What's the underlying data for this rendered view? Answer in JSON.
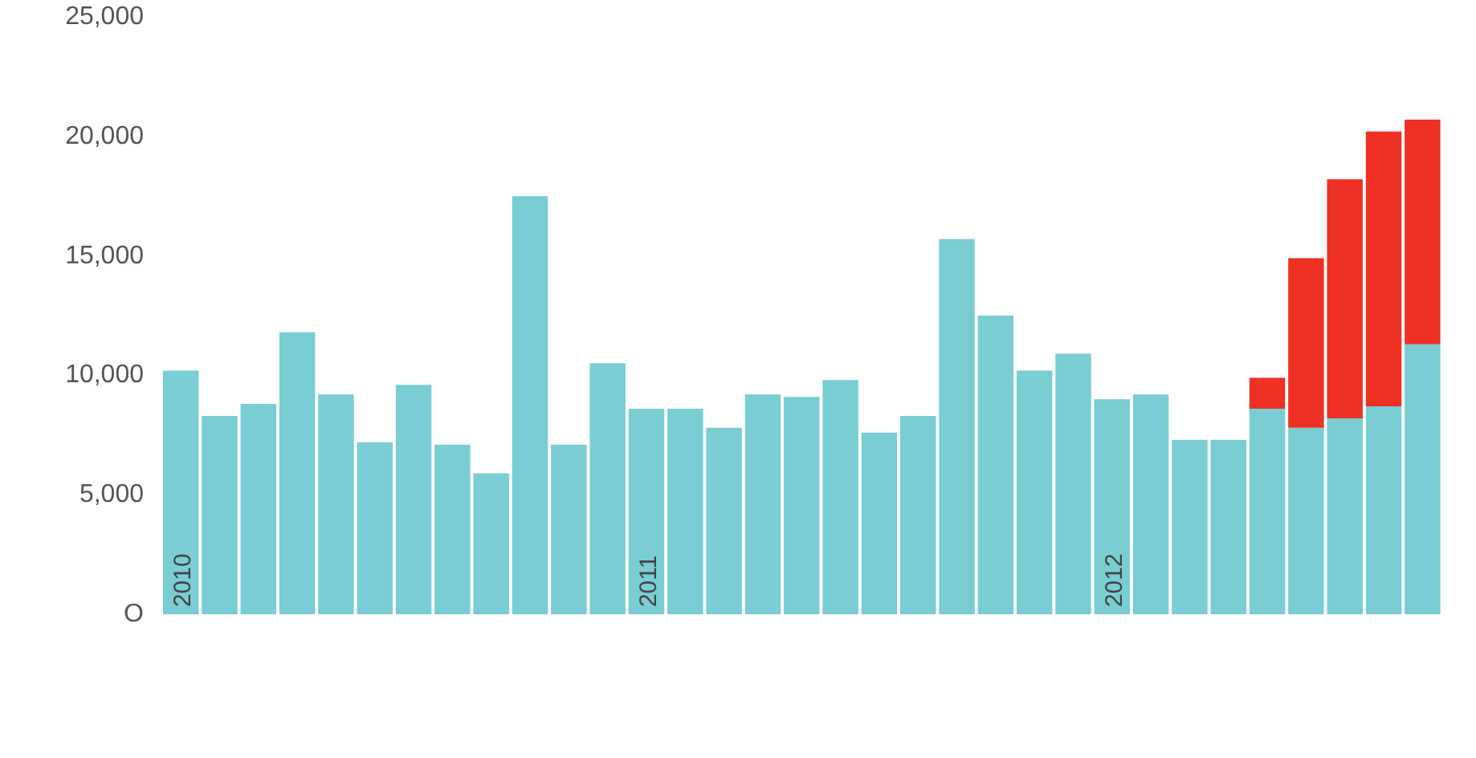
{
  "chart_data": {
    "type": "bar",
    "stacked": true,
    "categories": [
      "2010",
      null,
      null,
      null,
      null,
      null,
      null,
      null,
      null,
      null,
      null,
      null,
      "2011",
      null,
      null,
      null,
      null,
      null,
      null,
      null,
      null,
      null,
      null,
      null,
      "2012",
      null,
      null,
      null,
      null,
      null,
      null,
      null,
      null
    ],
    "series": [
      {
        "color": "#79cdd3",
        "values": [
          10200,
          8300,
          8800,
          11800,
          9200,
          7200,
          9600,
          7100,
          5900,
          17500,
          7100,
          10500,
          8600,
          8600,
          7800,
          9200,
          9100,
          9800,
          7600,
          8300,
          15700,
          12500,
          10200,
          10900,
          9000,
          9200,
          7300,
          7300,
          8600,
          7800,
          8200,
          8700,
          11300
        ]
      },
      {
        "color": "#ee3124",
        "values": [
          null,
          null,
          null,
          null,
          null,
          null,
          null,
          null,
          null,
          null,
          null,
          null,
          null,
          null,
          null,
          null,
          null,
          null,
          null,
          null,
          null,
          null,
          null,
          null,
          null,
          null,
          null,
          null,
          1300,
          7100,
          10000,
          11500,
          9400
        ]
      }
    ],
    "ylim": [
      0,
      25000
    ],
    "yticks": [
      {
        "value": 0,
        "label": "O"
      },
      {
        "value": 5000,
        "label": "5,000"
      },
      {
        "value": 10000,
        "label": "10,000"
      },
      {
        "value": 15000,
        "label": "15,000"
      },
      {
        "value": 20000,
        "label": "20,000"
      },
      {
        "value": 25000,
        "label": "25,000"
      }
    ],
    "grid": false
  }
}
